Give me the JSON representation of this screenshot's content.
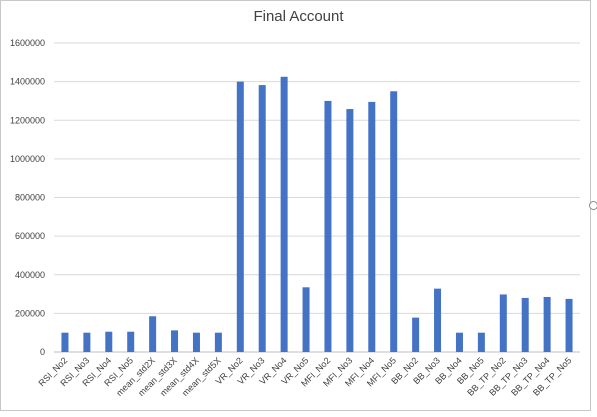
{
  "chart_data": {
    "type": "bar",
    "title": "Final Account",
    "xlabel": "",
    "ylabel": "",
    "ylim": [
      0,
      1600000
    ],
    "yticks": [
      0,
      200000,
      400000,
      600000,
      800000,
      1000000,
      1200000,
      1400000,
      1600000
    ],
    "ytick_labels": [
      "0",
      "200000",
      "400000",
      "600000",
      "800000",
      "1000000",
      "1200000",
      "1400000",
      "1600000"
    ],
    "grid": true,
    "legend": "none",
    "bar_color": "#4472C4",
    "categories": [
      "RSI_No2",
      "RSI_No3",
      "RSI_No4",
      "RSI_No5",
      "mean_std2X",
      "mean_std3X",
      "mean_std4X",
      "mean_std5X",
      "VR_No2",
      "VR_No3",
      "VR_No4",
      "VR_No5",
      "MFI_No2",
      "MFI_No3",
      "MFI_No4",
      "MFI_No5",
      "BB_No2",
      "BB_No3",
      "BB_No4",
      "BB_No5",
      "BB_TP_No2",
      "BB_TP_No3",
      "BB_TP_No4",
      "BB_TP_No5"
    ],
    "values": [
      100000,
      100000,
      105000,
      105000,
      185000,
      112000,
      100000,
      100000,
      1400000,
      1382000,
      1425000,
      335000,
      1300000,
      1258000,
      1295000,
      1350000,
      178000,
      328000,
      100000,
      100000,
      298000,
      280000,
      285000,
      275000
    ]
  }
}
